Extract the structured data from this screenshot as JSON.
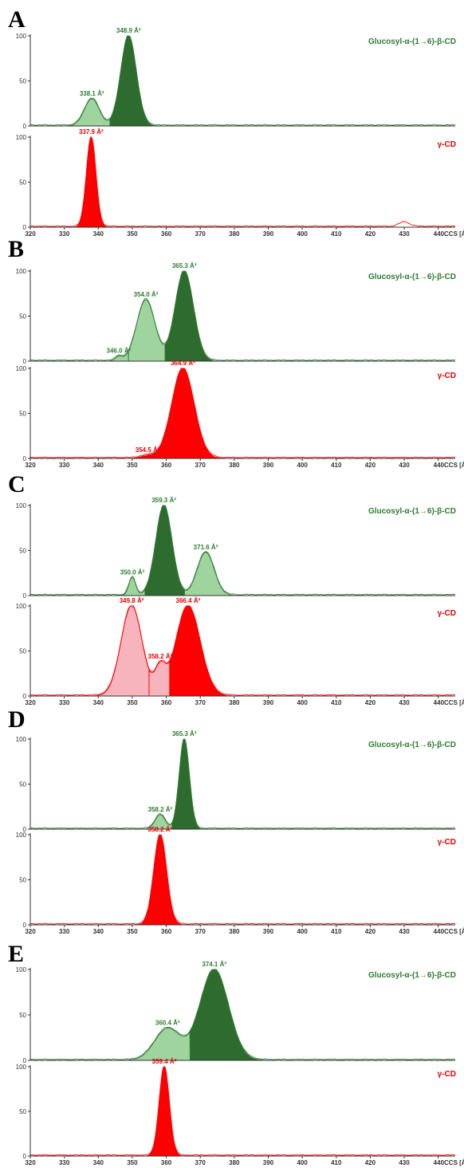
{
  "colors": {
    "green_dark": "#2e6b2e",
    "green_light": "#9fd49f",
    "green_line": "#2e7d32",
    "red": "#ff0000",
    "red_light": "#f8b4bc",
    "green_text": "#2e7d32",
    "red_text": "#e00000"
  },
  "x_axis": {
    "ticks": [
      "320",
      "330",
      "340",
      "350",
      "360",
      "370",
      "380",
      "390",
      "400",
      "410",
      "420",
      "430",
      "440CCS [Å²]"
    ],
    "range": [
      320,
      445
    ]
  },
  "y_ticks": [
    "0",
    "50",
    "100"
  ],
  "panels": [
    {
      "letter": "A",
      "top": {
        "legend": "Glucosyl-α-(1→6)-β-CD",
        "peaks": [
          {
            "center": 338.1,
            "height": 30,
            "width": 2.2,
            "label": "338.1 Å²",
            "shade": "light"
          },
          {
            "center": 348.9,
            "height": 100,
            "width": 2.3,
            "label": "348.9 Å²",
            "shade": "dark"
          }
        ]
      },
      "bottom": {
        "legend": "γ-CD",
        "peaks": [
          {
            "center": 337.9,
            "height": 100,
            "width": 1.4,
            "label": "337.9 Å²",
            "shade": "red"
          },
          {
            "center": 430,
            "height": 5,
            "width": 1.5,
            "label": "",
            "shade": "line"
          }
        ]
      }
    },
    {
      "letter": "B",
      "top": {
        "legend": "Glucosyl-α-(1→6)-β-CD",
        "peaks": [
          {
            "center": 346.0,
            "height": 5,
            "width": 1.0,
            "label": "346.0 Å²",
            "shade": "light"
          },
          {
            "center": 354.0,
            "height": 68,
            "width": 2.7,
            "label": "354.0 Å²",
            "shade": "light"
          },
          {
            "center": 365.3,
            "height": 100,
            "width": 2.7,
            "label": "365.3 Å²",
            "shade": "dark"
          }
        ]
      },
      "bottom": {
        "legend": "γ-CD",
        "peaks": [
          {
            "center": 354.5,
            "height": 3,
            "width": 2.0,
            "label": "354.5 Å²",
            "shade": "red"
          },
          {
            "center": 364.9,
            "height": 100,
            "width": 3.3,
            "label": "364.9 Å²",
            "shade": "red"
          }
        ]
      }
    },
    {
      "letter": "C",
      "top": {
        "legend": "Glucosyl-α-(1→6)-β-CD",
        "peaks": [
          {
            "center": 350.0,
            "height": 20,
            "width": 1.0,
            "label": "350.0 Å²",
            "shade": "light"
          },
          {
            "center": 359.3,
            "height": 100,
            "width": 2.4,
            "label": "359.3 Å²",
            "shade": "dark"
          },
          {
            "center": 371.6,
            "height": 48,
            "width": 2.5,
            "label": "371.6 Å²",
            "shade": "light"
          }
        ]
      },
      "bottom": {
        "legend": "γ-CD",
        "peaks": [
          {
            "center": 349.8,
            "height": 100,
            "width": 3.1,
            "label": "349.8 Å²",
            "shade": "pink"
          },
          {
            "center": 358.2,
            "height": 28,
            "width": 1.6,
            "label": "358.2 Å²",
            "shade": "pink"
          },
          {
            "center": 366.4,
            "height": 100,
            "width": 3.6,
            "label": "366.4 Å²",
            "shade": "red"
          }
        ]
      }
    },
    {
      "letter": "D",
      "top": {
        "legend": "Glucosyl-α-(1→6)-β-CD",
        "peaks": [
          {
            "center": 358.2,
            "height": 16,
            "width": 1.5,
            "label": "358.2 Å²",
            "shade": "light"
          },
          {
            "center": 365.3,
            "height": 100,
            "width": 1.5,
            "label": "365.3 Å²",
            "shade": "dark"
          }
        ]
      },
      "bottom": {
        "legend": "γ-CD",
        "peaks": [
          {
            "center": 358.2,
            "height": 100,
            "width": 1.9,
            "label": "358.2 Å²",
            "shade": "red"
          }
        ]
      }
    },
    {
      "letter": "E",
      "top": {
        "legend": "Glucosyl-α-(1→6)-β-CD",
        "peaks": [
          {
            "center": 360.4,
            "height": 35,
            "width": 3.8,
            "label": "360.4 Å²",
            "shade": "light"
          },
          {
            "center": 374.1,
            "height": 100,
            "width": 4.2,
            "label": "374.1 Å²",
            "shade": "dark"
          }
        ]
      },
      "bottom": {
        "legend": "γ-CD",
        "peaks": [
          {
            "center": 359.4,
            "height": 100,
            "width": 1.5,
            "label": "359.4 Å²",
            "shade": "red"
          }
        ]
      }
    }
  ],
  "chart_data": [
    {
      "type": "area",
      "panel": "A",
      "x": [
        320,
        445
      ],
      "xlabel": "CCS [Å²]",
      "ylim": [
        0,
        100
      ],
      "series": [
        {
          "name": "Glucosyl-α-(1→6)-β-CD",
          "peaks_x": [
            338.1,
            348.9
          ],
          "peaks_y": [
            30,
            100
          ]
        },
        {
          "name": "γ-CD",
          "peaks_x": [
            337.9,
            430
          ],
          "peaks_y": [
            100,
            5
          ]
        }
      ]
    },
    {
      "type": "area",
      "panel": "B",
      "x": [
        320,
        445
      ],
      "xlabel": "CCS [Å²]",
      "ylim": [
        0,
        100
      ],
      "series": [
        {
          "name": "Glucosyl-α-(1→6)-β-CD",
          "peaks_x": [
            346.0,
            354.0,
            365.3
          ],
          "peaks_y": [
            5,
            68,
            100
          ]
        },
        {
          "name": "γ-CD",
          "peaks_x": [
            354.5,
            364.9
          ],
          "peaks_y": [
            3,
            100
          ]
        }
      ]
    },
    {
      "type": "area",
      "panel": "C",
      "x": [
        320,
        445
      ],
      "xlabel": "CCS [Å²]",
      "ylim": [
        0,
        100
      ],
      "series": [
        {
          "name": "Glucosyl-α-(1→6)-β-CD",
          "peaks_x": [
            350.0,
            359.3,
            371.6
          ],
          "peaks_y": [
            20,
            100,
            48
          ]
        },
        {
          "name": "γ-CD",
          "peaks_x": [
            349.8,
            358.2,
            366.4
          ],
          "peaks_y": [
            100,
            28,
            100
          ]
        }
      ]
    },
    {
      "type": "area",
      "panel": "D",
      "x": [
        320,
        445
      ],
      "xlabel": "CCS [Å²]",
      "ylim": [
        0,
        100
      ],
      "series": [
        {
          "name": "Glucosyl-α-(1→6)-β-CD",
          "peaks_x": [
            358.2,
            365.3
          ],
          "peaks_y": [
            16,
            100
          ]
        },
        {
          "name": "γ-CD",
          "peaks_x": [
            358.2
          ],
          "peaks_y": [
            100
          ]
        }
      ]
    },
    {
      "type": "area",
      "panel": "E",
      "x": [
        320,
        445
      ],
      "xlabel": "CCS [Å²]",
      "ylim": [
        0,
        100
      ],
      "series": [
        {
          "name": "Glucosyl-α-(1→6)-β-CD",
          "peaks_x": [
            360.4,
            374.1
          ],
          "peaks_y": [
            35,
            100
          ]
        },
        {
          "name": "γ-CD",
          "peaks_x": [
            359.4
          ],
          "peaks_y": [
            100
          ]
        }
      ]
    }
  ]
}
